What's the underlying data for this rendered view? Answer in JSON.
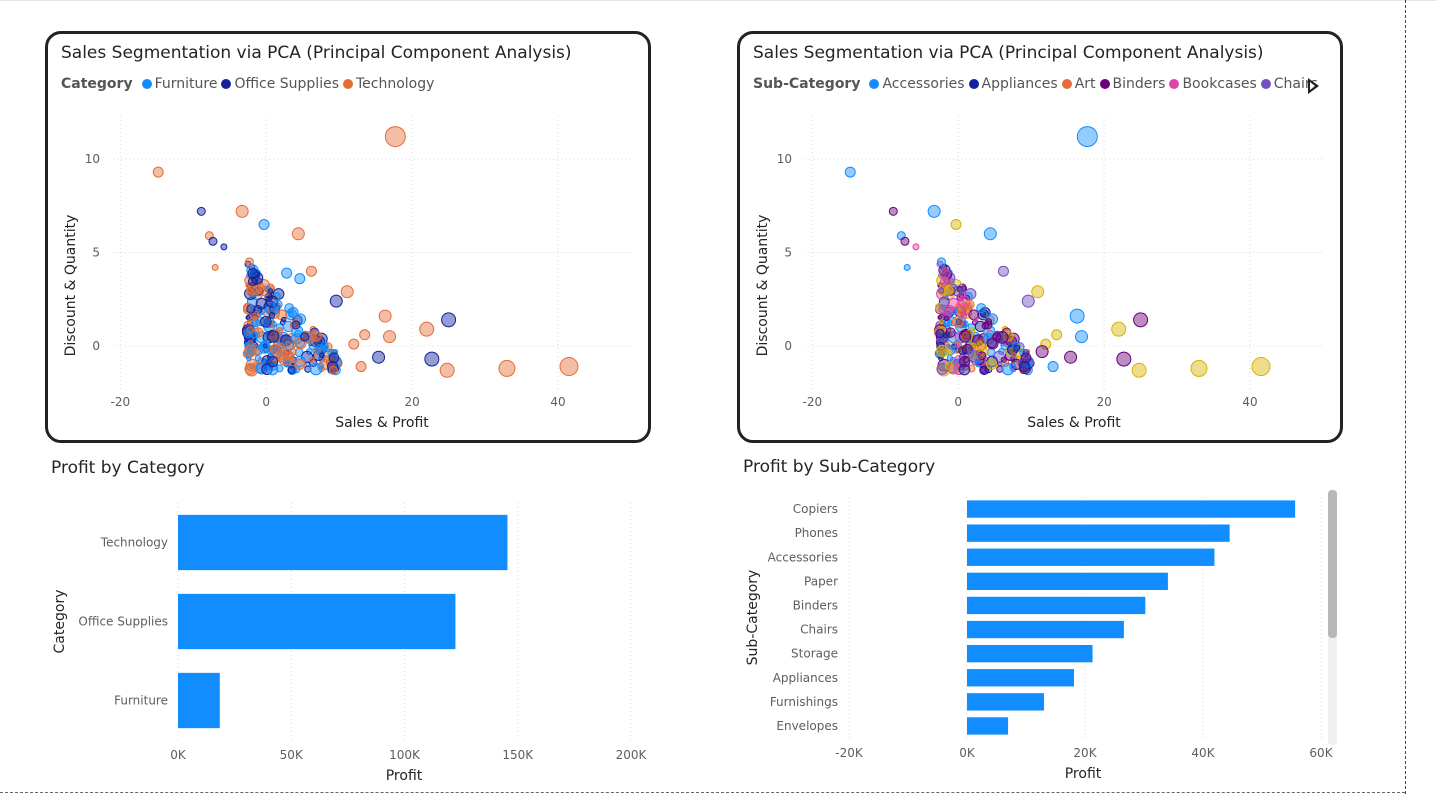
{
  "colors": {
    "Furniture": "#118DFF",
    "Office Supplies": "#12239E",
    "Technology": "#E66C37",
    "Accessories": "#118DFF",
    "Appliances": "#12239E",
    "Art": "#E66C37",
    "Binders": "#6B007B",
    "Bookcases": "#E044A7",
    "Chairs": "#744EC2",
    "Copiers": "#D9B300",
    "Phones": "#6B007B",
    "bar": "#118DFF"
  },
  "scatter1": {
    "title": "Sales Segmentation via PCA (Principal Component Analysis)",
    "legend_title": "Category",
    "legend": [
      "Furniture",
      "Office Supplies",
      "Technology"
    ]
  },
  "scatter2": {
    "title": "Sales Segmentation via PCA (Principal Component Analysis)",
    "legend_title": "Sub-Category",
    "legend": [
      "Accessories",
      "Appliances",
      "Art",
      "Binders",
      "Bookcases",
      "Chairs"
    ],
    "legend_more_icon": "chevron-right-icon"
  },
  "bar1": {
    "title": "Profit by Category"
  },
  "bar2": {
    "title": "Profit by Sub-Category"
  },
  "chart_data": [
    {
      "type": "scatter",
      "title": "Sales Segmentation via PCA (Principal Component Analysis)",
      "xlabel": "Sales & Profit",
      "ylabel": "Discount & Quantity",
      "xlim": [
        -21,
        50
      ],
      "ylim": [
        -2.3,
        12.3
      ],
      "xticks": [
        -20,
        0,
        20,
        40
      ],
      "yticks": [
        0,
        5,
        10
      ],
      "legend_title": "Category",
      "grid": true,
      "points": [
        {
          "x": 17.7,
          "y": 11.2,
          "size": 10,
          "group": "Technology"
        },
        {
          "x": -14.8,
          "y": 9.3,
          "size": 5,
          "group": "Technology"
        },
        {
          "x": -8.9,
          "y": 7.2,
          "size": 4,
          "group": "Office Supplies"
        },
        {
          "x": -3.3,
          "y": 7.2,
          "size": 6,
          "group": "Technology"
        },
        {
          "x": -0.3,
          "y": 6.5,
          "size": 5,
          "group": "Furniture"
        },
        {
          "x": 4.4,
          "y": 6.0,
          "size": 6,
          "group": "Technology"
        },
        {
          "x": -7.8,
          "y": 5.9,
          "size": 4,
          "group": "Technology"
        },
        {
          "x": -7.3,
          "y": 5.6,
          "size": 4,
          "group": "Office Supplies"
        },
        {
          "x": -5.8,
          "y": 5.3,
          "size": 3,
          "group": "Office Supplies"
        },
        {
          "x": -2.3,
          "y": 4.5,
          "size": 4,
          "group": "Technology"
        },
        {
          "x": -7.0,
          "y": 4.2,
          "size": 3,
          "group": "Technology"
        },
        {
          "x": 6.2,
          "y": 4.0,
          "size": 5,
          "group": "Technology"
        },
        {
          "x": 2.8,
          "y": 3.9,
          "size": 5,
          "group": "Furniture"
        },
        {
          "x": 4.6,
          "y": 3.6,
          "size": 5,
          "group": "Furniture"
        },
        {
          "x": 11.1,
          "y": 2.9,
          "size": 6,
          "group": "Technology"
        },
        {
          "x": 9.6,
          "y": 2.4,
          "size": 6,
          "group": "Office Supplies"
        },
        {
          "x": 16.3,
          "y": 1.6,
          "size": 6,
          "group": "Technology"
        },
        {
          "x": 25.0,
          "y": 1.4,
          "size": 7,
          "group": "Office Supplies"
        },
        {
          "x": 22.0,
          "y": 0.9,
          "size": 7,
          "group": "Technology"
        },
        {
          "x": 13.5,
          "y": 0.6,
          "size": 5,
          "group": "Technology"
        },
        {
          "x": 12.0,
          "y": 0.1,
          "size": 5,
          "group": "Technology"
        },
        {
          "x": 16.9,
          "y": 0.5,
          "size": 6,
          "group": "Technology"
        },
        {
          "x": 15.4,
          "y": -0.6,
          "size": 6,
          "group": "Office Supplies"
        },
        {
          "x": 22.7,
          "y": -0.7,
          "size": 7,
          "group": "Office Supplies"
        },
        {
          "x": 24.8,
          "y": -1.3,
          "size": 7,
          "group": "Technology"
        },
        {
          "x": 33.0,
          "y": -1.2,
          "size": 8,
          "group": "Technology"
        },
        {
          "x": 41.5,
          "y": -1.1,
          "size": 9,
          "group": "Technology"
        },
        {
          "x": 9.1,
          "y": -1.1,
          "size": 5,
          "group": "Office Supplies"
        },
        {
          "x": 13.0,
          "y": -1.1,
          "size": 5,
          "group": "Technology"
        },
        {
          "x": 9.2,
          "y": -1.3,
          "size": 4,
          "group": "Technology"
        }
      ],
      "dense_cluster": {
        "x_range": [
          -2.5,
          10
        ],
        "y_range": [
          -1.3,
          4.5
        ],
        "groups": [
          "Furniture",
          "Office Supplies",
          "Technology"
        ]
      }
    },
    {
      "type": "scatter",
      "title": "Sales Segmentation via PCA (Principal Component Analysis)",
      "xlabel": "Sales & Profit",
      "ylabel": "Discount & Quantity",
      "xlim": [
        -21,
        50
      ],
      "ylim": [
        -2.3,
        12.3
      ],
      "xticks": [
        -20,
        0,
        20,
        40
      ],
      "yticks": [
        0,
        5,
        10
      ],
      "legend_title": "Sub-Category",
      "grid": true,
      "points": [
        {
          "x": 17.7,
          "y": 11.2,
          "size": 10,
          "group": "Accessories"
        },
        {
          "x": -14.8,
          "y": 9.3,
          "size": 5,
          "group": "Accessories"
        },
        {
          "x": -8.9,
          "y": 7.2,
          "size": 4,
          "group": "Binders"
        },
        {
          "x": -3.3,
          "y": 7.2,
          "size": 6,
          "group": "Accessories"
        },
        {
          "x": -0.3,
          "y": 6.5,
          "size": 5,
          "group": "Copiers"
        },
        {
          "x": 4.4,
          "y": 6.0,
          "size": 6,
          "group": "Accessories"
        },
        {
          "x": -7.8,
          "y": 5.9,
          "size": 4,
          "group": "Accessories"
        },
        {
          "x": -7.3,
          "y": 5.6,
          "size": 4,
          "group": "Binders"
        },
        {
          "x": -5.8,
          "y": 5.3,
          "size": 3,
          "group": "Bookcases"
        },
        {
          "x": -2.3,
          "y": 4.5,
          "size": 4,
          "group": "Accessories"
        },
        {
          "x": -7.0,
          "y": 4.2,
          "size": 3,
          "group": "Accessories"
        },
        {
          "x": 6.2,
          "y": 4.0,
          "size": 5,
          "group": "Chairs"
        },
        {
          "x": 10.9,
          "y": 2.9,
          "size": 6,
          "group": "Copiers"
        },
        {
          "x": 9.6,
          "y": 2.4,
          "size": 6,
          "group": "Chairs"
        },
        {
          "x": 16.3,
          "y": 1.6,
          "size": 7,
          "group": "Accessories"
        },
        {
          "x": 25.0,
          "y": 1.4,
          "size": 7,
          "group": "Binders"
        },
        {
          "x": 22.0,
          "y": 0.9,
          "size": 7,
          "group": "Copiers"
        },
        {
          "x": 13.5,
          "y": 0.6,
          "size": 5,
          "group": "Copiers"
        },
        {
          "x": 16.9,
          "y": 0.5,
          "size": 6,
          "group": "Accessories"
        },
        {
          "x": 12.0,
          "y": 0.1,
          "size": 5,
          "group": "Copiers"
        },
        {
          "x": 15.4,
          "y": -0.6,
          "size": 6,
          "group": "Binders"
        },
        {
          "x": 22.7,
          "y": -0.7,
          "size": 7,
          "group": "Binders"
        },
        {
          "x": 24.8,
          "y": -1.3,
          "size": 7,
          "group": "Copiers"
        },
        {
          "x": 33.0,
          "y": -1.2,
          "size": 8,
          "group": "Copiers"
        },
        {
          "x": 41.5,
          "y": -1.1,
          "size": 9,
          "group": "Copiers"
        },
        {
          "x": 9.1,
          "y": -1.1,
          "size": 5,
          "group": "Appliances"
        },
        {
          "x": 13.0,
          "y": -1.1,
          "size": 5,
          "group": "Accessories"
        },
        {
          "x": 11.5,
          "y": -0.3,
          "size": 6,
          "group": "Phones"
        }
      ],
      "dense_cluster": {
        "x_range": [
          -2.5,
          10
        ],
        "y_range": [
          -1.3,
          4.5
        ],
        "groups": [
          "Accessories",
          "Appliances",
          "Art",
          "Binders",
          "Bookcases",
          "Chairs",
          "Copiers",
          "Phones"
        ]
      }
    },
    {
      "type": "bar",
      "orientation": "horizontal",
      "title": "Profit by Category",
      "categories": [
        "Technology",
        "Office Supplies",
        "Furniture"
      ],
      "values": [
        145455,
        122491,
        18451
      ],
      "xlabel": "Profit",
      "ylabel": "Category",
      "xlim": [
        0,
        200000
      ],
      "xtick_values": [
        0,
        50000,
        100000,
        150000,
        200000
      ],
      "xtick_labels": [
        "0K",
        "50K",
        "100K",
        "150K",
        "200K"
      ]
    },
    {
      "type": "bar",
      "orientation": "horizontal",
      "title": "Profit by Sub-Category",
      "categories": [
        "Copiers",
        "Phones",
        "Accessories",
        "Paper",
        "Binders",
        "Chairs",
        "Storage",
        "Appliances",
        "Furnishings",
        "Envelopes"
      ],
      "values": [
        55618,
        44516,
        41937,
        34054,
        30222,
        26590,
        21279,
        18138,
        13059,
        6964
      ],
      "xlabel": "Profit",
      "ylabel": "Sub-Category",
      "xlim": [
        -20000,
        60000
      ],
      "xtick_values": [
        -20000,
        0,
        20000,
        40000,
        60000
      ],
      "xtick_labels": [
        "-20K",
        "0K",
        "20K",
        "40K",
        "60K"
      ]
    }
  ]
}
